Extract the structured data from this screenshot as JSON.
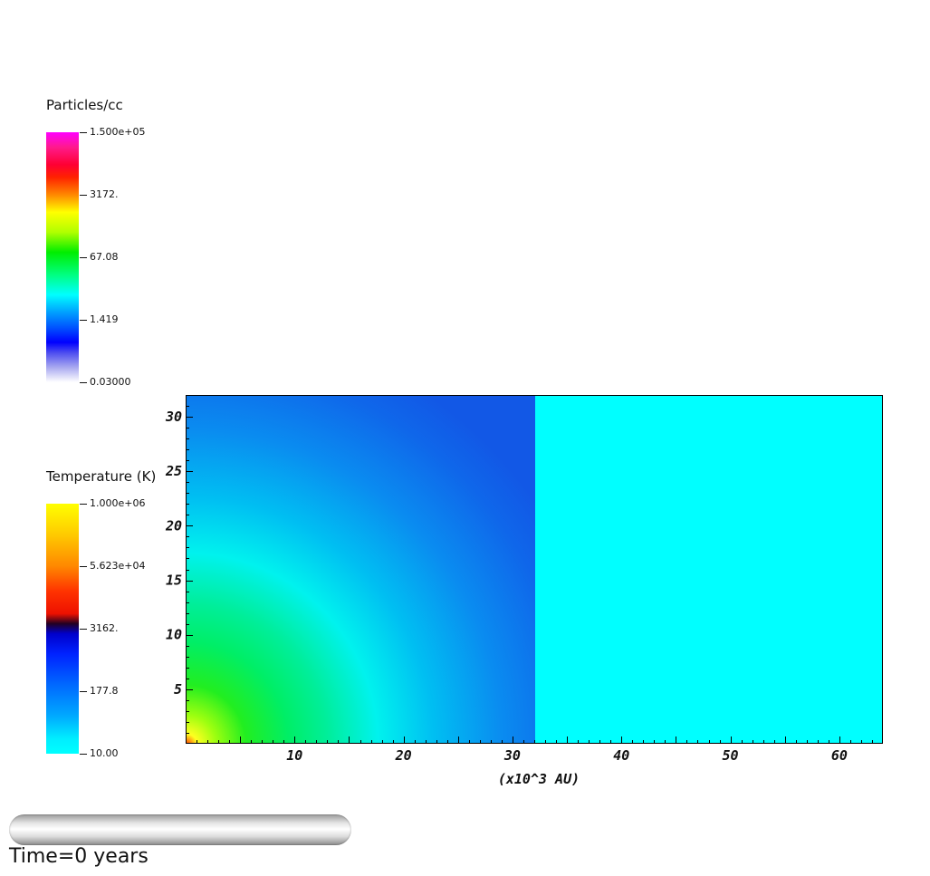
{
  "density_legend": {
    "title": "Particles/cc",
    "ticks": [
      "1.500e+05",
      "3172.",
      "67.08",
      "1.419",
      "0.03000"
    ]
  },
  "temperature_legend": {
    "title": "Temperature (K)",
    "ticks": [
      "1.000e+06",
      "5.623e+04",
      "3162.",
      "177.8",
      "10.00"
    ]
  },
  "chart_data": {
    "type": "heatmap",
    "xlabel": "(x10^3 AU)",
    "ylabel": "",
    "xlim": [
      0,
      64
    ],
    "ylim": [
      0,
      32
    ],
    "x_ticks": [
      10,
      20,
      30,
      40,
      50,
      60
    ],
    "y_ticks": [
      5,
      10,
      15,
      20,
      25,
      30
    ],
    "left_region": {
      "x_range": [
        0,
        32
      ],
      "field": "Particles/cc"
    },
    "right_region": {
      "x_range": [
        32,
        64
      ],
      "field": "Temperature (K)",
      "color": "#00ffff"
    }
  },
  "time_slider": {
    "label": "Time=0 years",
    "progress": 0
  }
}
